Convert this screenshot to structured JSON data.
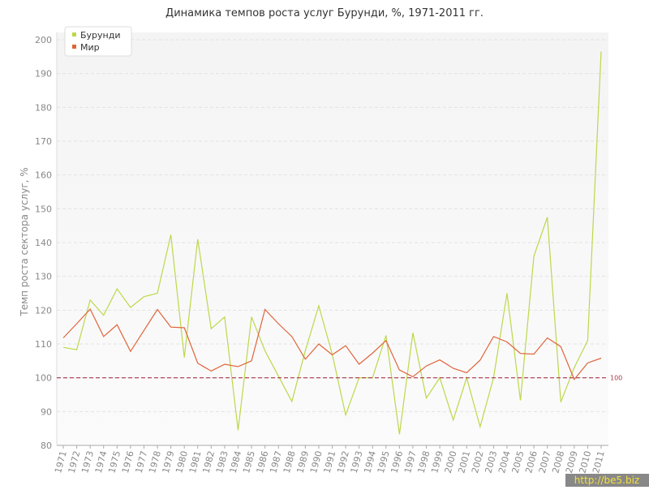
{
  "chart_data": {
    "type": "line",
    "title": "Динамика темпов роста услуг Бурунди, %, 1971-2011 гг.",
    "y_label": "Темп роста сектора услуг, %",
    "categories": [
      "1971",
      "1972",
      "1973",
      "1974",
      "1975",
      "1976",
      "1977",
      "1978",
      "1979",
      "1980",
      "1981",
      "1982",
      "1983",
      "1984",
      "1985",
      "1986",
      "1987",
      "1988",
      "1989",
      "1990",
      "1991",
      "1992",
      "1993",
      "1994",
      "1995",
      "1996",
      "1997",
      "1998",
      "1999",
      "2000",
      "2001",
      "2002",
      "2003",
      "2004",
      "2005",
      "2006",
      "2007",
      "2008",
      "2009",
      "2010",
      "2011"
    ],
    "series": [
      {
        "name": "Бурунди",
        "color": "#bcd84a",
        "values": [
          109,
          108.3,
          123,
          118.5,
          126.3,
          120.8,
          124,
          125,
          142.3,
          106,
          141,
          114.5,
          118,
          84.5,
          118,
          108,
          100.5,
          93,
          108,
          121.3,
          107,
          89,
          100,
          100,
          112.5,
          83.3,
          113.3,
          94,
          100,
          87.5,
          100,
          85.5,
          100,
          125,
          93.3,
          136,
          147.5,
          92.8,
          103,
          111,
          196.5
        ]
      },
      {
        "name": "Мир",
        "color": "#e0643a",
        "values": [
          111.8,
          116,
          120.3,
          112.2,
          115.7,
          107.8,
          114,
          120.2,
          115,
          114.8,
          104.3,
          102,
          104,
          103.3,
          105,
          120.2,
          116,
          112.2,
          105.5,
          110,
          106.8,
          109.5,
          104,
          107.3,
          111,
          102.3,
          100.3,
          103.5,
          105.3,
          102.8,
          101.5,
          105.2,
          112.2,
          110.6,
          107.2,
          107,
          111.8,
          109.2,
          99.5,
          104.4,
          105.8
        ]
      }
    ],
    "reference_line": 100,
    "reference_color": "#a8384a",
    "ylim": [
      80,
      200
    ],
    "yticks": [
      80,
      90,
      100,
      110,
      120,
      130,
      140,
      150,
      160,
      170,
      180,
      190,
      200
    ],
    "grid": true,
    "legend": "top-left",
    "watermark": "http://be5.biz"
  }
}
